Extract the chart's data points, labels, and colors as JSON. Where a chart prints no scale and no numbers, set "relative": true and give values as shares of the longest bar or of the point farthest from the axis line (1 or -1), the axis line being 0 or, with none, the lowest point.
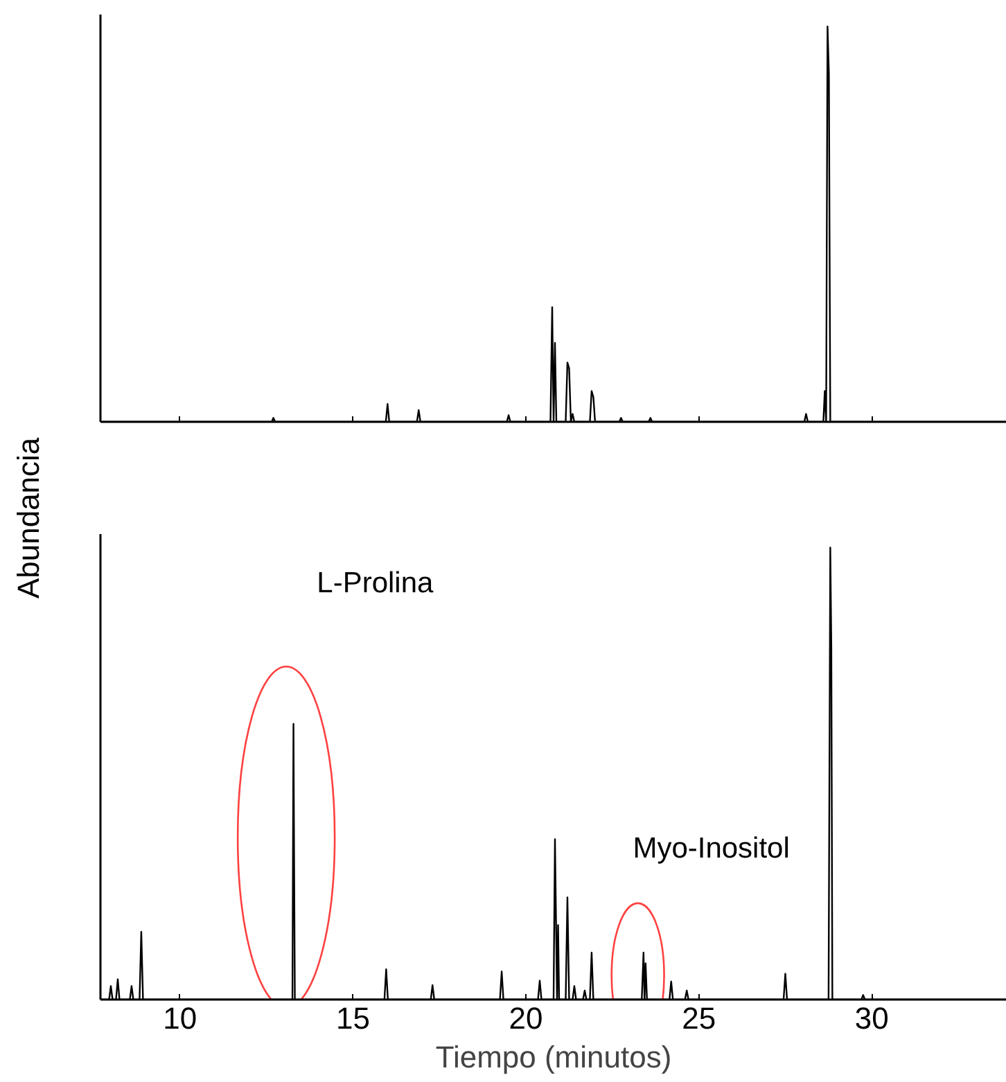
{
  "chart_data": [
    {
      "type": "line",
      "relative": true,
      "xlim": [
        7.7,
        33.9
      ],
      "xticks": [
        10,
        15,
        20,
        25,
        30
      ],
      "tick_labels": false,
      "grid": false,
      "series": [
        {
          "color": "#000000",
          "x": [
            7.7,
            12.65,
            12.7,
            12.75,
            15.95,
            16.0,
            16.05,
            16.85,
            16.9,
            16.95,
            19.45,
            19.5,
            19.55,
            20.71,
            20.76,
            20.8,
            20.84,
            20.88,
            21.15,
            21.2,
            21.25,
            21.3,
            21.35,
            21.4,
            21.45,
            21.85,
            21.9,
            21.95,
            22.0,
            22.05,
            22.7,
            22.75,
            22.8,
            23.55,
            23.6,
            23.65,
            28.05,
            28.1,
            28.15,
            28.6,
            28.64,
            28.68,
            28.72,
            28.76,
            28.8,
            33.9
          ],
          "values": [
            0,
            0,
            0.01,
            0,
            0,
            0.045,
            0,
            0,
            0.03,
            0,
            0,
            0.017,
            0,
            0,
            0.29,
            0,
            0.2,
            0,
            0,
            0.15,
            0.135,
            0,
            0.02,
            0,
            0,
            0,
            0.078,
            0.063,
            0,
            0,
            0,
            0.01,
            0,
            0,
            0.01,
            0,
            0,
            0.02,
            0,
            0,
            0.078,
            0,
            1.0,
            0.88,
            0,
            0
          ]
        }
      ]
    },
    {
      "type": "line",
      "relative": true,
      "xlim": [
        7.7,
        33.9
      ],
      "xticks": [
        10,
        15,
        20,
        25,
        30
      ],
      "tick_labels": "x",
      "grid": false,
      "xlabel": "Tiempo (minutos)",
      "ylabel": "Abundancia",
      "annotations": [
        "L-Prolina",
        "Myo-Inositol"
      ],
      "series": [
        {
          "color": "#000000",
          "x": [
            7.7,
            7.95,
            8.0,
            8.05,
            8.15,
            8.2,
            8.25,
            8.55,
            8.6,
            8.65,
            8.83,
            8.88,
            8.93,
            13.25,
            13.28,
            13.3,
            13.32,
            15.91,
            15.96,
            16.01,
            17.25,
            17.3,
            17.35,
            19.25,
            19.3,
            19.35,
            20.35,
            20.4,
            20.45,
            20.8,
            20.84,
            20.87,
            20.9,
            20.93,
            20.96,
            21.0,
            21.15,
            21.2,
            21.25,
            21.35,
            21.4,
            21.45,
            21.65,
            21.7,
            21.75,
            21.85,
            21.9,
            21.95,
            23.35,
            23.4,
            23.43,
            23.46,
            23.5,
            24.15,
            24.2,
            24.25,
            24.6,
            24.65,
            24.7,
            27.45,
            27.5,
            27.55,
            28.75,
            28.8,
            28.83,
            28.86,
            29.7,
            29.75,
            29.8,
            33.9
          ],
          "values": [
            0,
            0,
            0.03,
            0,
            0,
            0.045,
            0,
            0,
            0.03,
            0,
            0,
            0.15,
            0,
            0,
            0.61,
            0.29,
            0,
            0,
            0.067,
            0,
            0,
            0.032,
            0,
            0,
            0.062,
            0,
            0,
            0.042,
            0,
            0,
            0.355,
            0.18,
            0,
            0.165,
            0,
            0,
            0,
            0.226,
            0,
            0,
            0.03,
            0,
            0,
            0.02,
            0,
            0,
            0.104,
            0,
            0,
            0.104,
            0,
            0.08,
            0,
            0,
            0.04,
            0,
            0,
            0.02,
            0,
            0,
            0.057,
            0,
            0,
            1.0,
            0.78,
            0,
            0,
            0.01,
            0,
            0
          ]
        }
      ]
    }
  ]
}
